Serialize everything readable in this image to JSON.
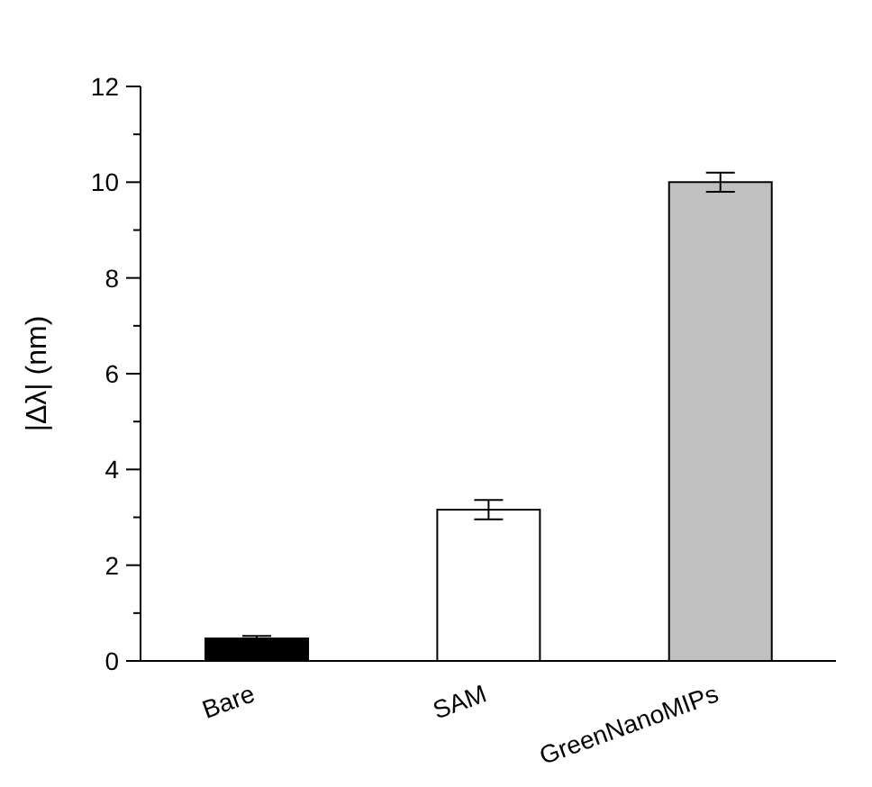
{
  "chart_data": {
    "type": "bar",
    "ylabel": "|Δλ| (nm)",
    "categories": [
      "Bare",
      "SAM",
      "GreenNanoMIPs"
    ],
    "values": [
      0.47,
      3.16,
      10.0
    ],
    "errors": [
      0.05,
      0.2,
      0.2
    ],
    "colors": [
      "#000000",
      "#ffffff",
      "#c0c0c0"
    ],
    "ylim": [
      0,
      12
    ],
    "yticks": [
      0,
      {
        "value": 1,
        "label": null
      },
      2,
      {
        "value": 3,
        "label": null
      },
      4,
      {
        "value": 5,
        "label": null
      },
      6,
      {
        "value": 7,
        "label": null
      },
      8,
      {
        "value": 9,
        "label": null
      },
      10,
      {
        "value": 11,
        "label": null
      },
      12
    ],
    "grid": false,
    "legend": false
  }
}
